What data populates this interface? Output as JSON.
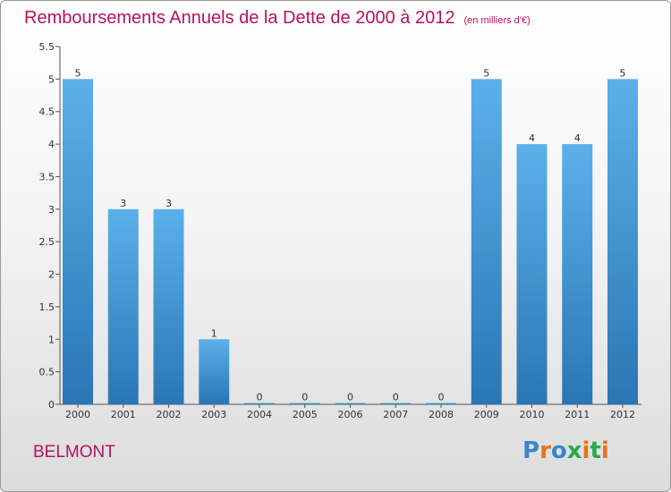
{
  "title": "Remboursements Annuels de la Dette de 2000 à 2012",
  "subtitle": "(en milliers d'€)",
  "commune": "BELMONT",
  "logo": {
    "text": "Proxiti",
    "letter_colors": [
      "#3a86c8",
      "#e8731c",
      "#3a86c8",
      "#2aa84a",
      "#e8731c",
      "#2aa84a",
      "#e8731c"
    ]
  },
  "colors": {
    "title": "#b5125e",
    "bar_top": "#5cb0ea",
    "bar_bottom": "#2a76b4"
  },
  "chart_data": {
    "type": "bar",
    "categories": [
      "2000",
      "2001",
      "2002",
      "2003",
      "2004",
      "2005",
      "2006",
      "2007",
      "2008",
      "2009",
      "2010",
      "2011",
      "2012"
    ],
    "values": [
      5,
      3,
      3,
      1,
      0,
      0,
      0,
      0,
      0,
      5,
      4,
      4,
      5
    ],
    "data_labels": [
      "5",
      "3",
      "3",
      "1",
      "0",
      "0",
      "0",
      "0",
      "0",
      "5",
      "4",
      "4",
      "5"
    ],
    "yticks": [
      "0",
      "0.5",
      "1",
      "1.5",
      "2",
      "2.5",
      "3",
      "3.5",
      "4",
      "4.5",
      "5",
      "5.5"
    ],
    "ylim": [
      0,
      5.5
    ],
    "grid": false,
    "legend": "none"
  }
}
